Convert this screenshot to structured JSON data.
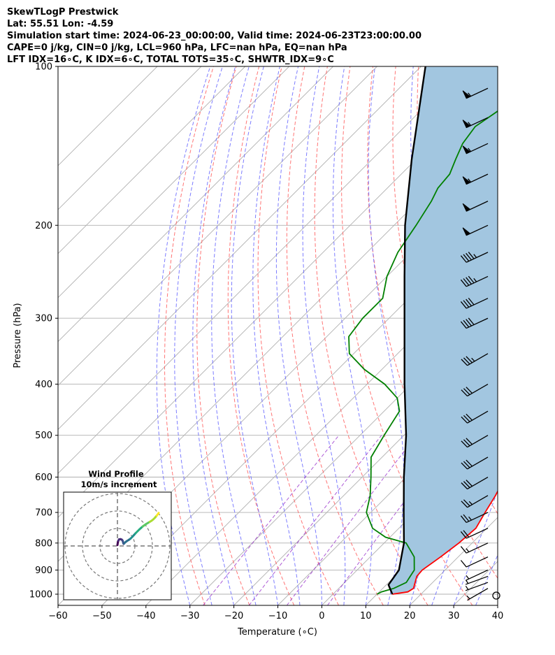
{
  "header": {
    "line1": "SkewTLogP Prestwick",
    "line2": "Lat: 55.51   Lon: -4.59",
    "line3": "Simulation start time: 2024-06-23_00:00:00, Valid time: 2024-06-23T23:00:00.00",
    "line4": "CAPE=0 j/kg, CIN=0 j/kg, LCL=960 hPa, LFC=nan hPa, EQ=nan hPa",
    "line5": "LFT IDX=16∘C, K IDX=6∘C, TOTAL TOTS=35∘C, SHWTR_IDX=9∘C"
  },
  "chart_data": {
    "type": "line",
    "xlabel": "Temperature (∘C)",
    "ylabel": "Pressure (hPa)",
    "xlim": [
      -60,
      40
    ],
    "ylim": [
      1050,
      100
    ],
    "y_scale": "log",
    "x_ticks": [
      "−60",
      "−50",
      "−40",
      "−30",
      "−20",
      "−10",
      "0",
      "10",
      "20",
      "30",
      "40"
    ],
    "y_ticks": [
      "100",
      "200",
      "300",
      "400",
      "500",
      "600",
      "700",
      "800",
      "900",
      "1000"
    ],
    "grid": true,
    "colors": {
      "temperature": "#ff0000",
      "dewpoint": "#008000",
      "parcel": "#000000",
      "shade": "#a2c6e0",
      "dry_adiabat": "#ff6666",
      "moist_adiabat": "#6666ff",
      "mixing_ratio": "#9932cc"
    },
    "temperature": {
      "p": [
        1000,
        990,
        975,
        950,
        925,
        900,
        850,
        800,
        750,
        700,
        650,
        600,
        550,
        500,
        450,
        400,
        350,
        300,
        275,
        250,
        225,
        200,
        180,
        170,
        160,
        150,
        140,
        130,
        120,
        110,
        100
      ],
      "t": [
        13.5,
        16.5,
        17,
        16,
        15,
        14.8,
        16,
        17,
        17.5,
        16,
        14.5,
        12.5,
        10.2,
        6.5,
        2.5,
        -3.5,
        -10,
        -17,
        -20.5,
        -24.5,
        -29,
        -34,
        -38.5,
        -40,
        -41,
        -42.5,
        -44,
        -46,
        -48.5,
        -52.5,
        -56
      ]
    },
    "dewpoint": {
      "p": [
        1000,
        990,
        975,
        950,
        925,
        900,
        850,
        800,
        780,
        750,
        700,
        650,
        600,
        550,
        500,
        450,
        425,
        400,
        375,
        350,
        325,
        300,
        275,
        250,
        225,
        200,
        180,
        170,
        160,
        150,
        140,
        130,
        110,
        100
      ],
      "t": [
        10,
        10.5,
        12.5,
        14,
        13.5,
        13,
        10,
        5,
        -1,
        -6,
        -11,
        -14,
        -18,
        -22.5,
        -24.5,
        -26.5,
        -30,
        -36,
        -44,
        -51,
        -55,
        -56,
        -56,
        -60,
        -63,
        -65,
        -67,
        -68.5,
        -69,
        -71,
        -73,
        -74,
        -70,
        -67
      ]
    },
    "parcel": {
      "p": [
        1000,
        960,
        900,
        800,
        700,
        600,
        500,
        400,
        300,
        250,
        200,
        150,
        100
      ],
      "t": [
        13.5,
        10.5,
        9.5,
        4.5,
        -2.5,
        -10.5,
        -19.5,
        -31.5,
        -46.5,
        -56,
        -67.5,
        -81,
        -99
      ]
    },
    "wind_barbs": {
      "p": [
        1000,
        975,
        950,
        925,
        900,
        850,
        800,
        750,
        700,
        650,
        600,
        550,
        500,
        450,
        400,
        350,
        300,
        275,
        250,
        225,
        200,
        180,
        160,
        140,
        125,
        110
      ],
      "speed_kt": [
        0,
        5,
        5,
        5,
        5,
        10,
        15,
        20,
        25,
        25,
        30,
        30,
        30,
        30,
        30,
        35,
        40,
        40,
        45,
        45,
        50,
        50,
        55,
        55,
        55,
        55
      ],
      "dir_deg": [
        0,
        240,
        250,
        250,
        245,
        245,
        245,
        245,
        245,
        240,
        240,
        240,
        240,
        240,
        240,
        240,
        245,
        245,
        245,
        245,
        245,
        245,
        245,
        245,
        245,
        245
      ]
    },
    "hodograph": {
      "title": "Wind Profile",
      "subtitle": "10m/s increment",
      "u": [
        0.0,
        0.2,
        0.5,
        1.0,
        1.8,
        2.5,
        3.0,
        3.2,
        3.4,
        3.6,
        4.0,
        4.6,
        5.4,
        6.4,
        7.5,
        8.5,
        9.5,
        10.5,
        11.5,
        12.5,
        13.5,
        14.5,
        15.5,
        16.5,
        17.5,
        18.5,
        19.5,
        20.5,
        21.5,
        22.5,
        23.3,
        23.6
      ],
      "v": [
        0.5,
        1.8,
        3.0,
        3.8,
        3.9,
        3.6,
        3.0,
        2.2,
        1.5,
        1.2,
        1.6,
        2.2,
        2.8,
        3.4,
        4.2,
        5.2,
        6.3,
        7.4,
        8.4,
        9.4,
        10.3,
        11.2,
        11.9,
        12.6,
        13.2,
        13.8,
        14.4,
        15.2,
        16.2,
        17.4,
        18.4,
        18.9
      ]
    }
  }
}
